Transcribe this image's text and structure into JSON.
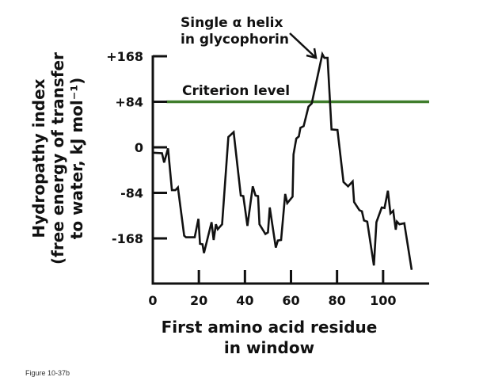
{
  "chart_data": {
    "type": "line",
    "xlabel": [
      "First amino acid residue",
      "in window"
    ],
    "ylabel": [
      "Hydropathy index",
      "(free energy of transfer",
      "to water, kJ mol⁻¹)"
    ],
    "xlim": [
      0,
      120
    ],
    "ylim": [
      -250,
      168
    ],
    "x_ticks": [
      0,
      20,
      40,
      60,
      80,
      100
    ],
    "x_tick_labels": [
      "0",
      "20",
      "40",
      "60",
      "80",
      "100"
    ],
    "y_ticks": [
      168,
      84,
      0,
      -84,
      -168
    ],
    "y_tick_labels": [
      "+168",
      "+84",
      "0",
      "-84",
      "-168"
    ],
    "grid": false,
    "series": [
      {
        "color": "#111111",
        "x": [
          0,
          4,
          4.9,
          6.6,
          8.3,
          9.8,
          10.9,
          13.6,
          14.4,
          18.2,
          19.8,
          20.5,
          21.6,
          22.2,
          25.5,
          26.4,
          27.4,
          28.2,
          30.1,
          32.8,
          35.1,
          38.2,
          39.3,
          41.1,
          43.4,
          44.6,
          45.7,
          46.3,
          48.9,
          50,
          50.8,
          53.4,
          54.3,
          55.7,
          57.5,
          58.4,
          60.7,
          61.1,
          62.3,
          63.4,
          64.1,
          65.5,
          67.6,
          69,
          73.6,
          74.5,
          75.9,
          77.6,
          80.2,
          82.8,
          84.8,
          86.8,
          87.4,
          89.7,
          90.8,
          91.7,
          93.1,
          96,
          97.1,
          99.4,
          100.6,
          102.1,
          103.2,
          104.4,
          105.5,
          106,
          107.1,
          109.2,
          112.4
        ],
        "y": [
          -10,
          -11,
          -28,
          -2,
          -79,
          -79,
          -74,
          -163,
          -166,
          -166,
          -132,
          -178,
          -179,
          -195,
          -138,
          -171,
          -142,
          -151,
          -142,
          19,
          28,
          -89,
          -90,
          -145,
          -72,
          -89,
          -90,
          -142,
          -160,
          -157,
          -111,
          -185,
          -172,
          -171,
          -86,
          -103,
          -91,
          -13,
          16,
          20,
          36,
          39,
          75,
          81,
          172,
          165,
          165,
          33,
          32,
          -64,
          -72,
          -63,
          -101,
          -116,
          -118,
          -135,
          -137,
          -218,
          -138,
          -111,
          -112,
          -80,
          -122,
          -117,
          -152,
          -137,
          -142,
          -140,
          -226
        ]
      }
    ],
    "reference_line": {
      "label": "Criterion level",
      "y": 84,
      "color": "#3f7d2c"
    },
    "annotation": {
      "lines": [
        "Single α helix",
        "in glycophorin"
      ],
      "points_to_x": 73.6,
      "points_to_y": 172
    }
  },
  "footer": "Figure 10-37b"
}
